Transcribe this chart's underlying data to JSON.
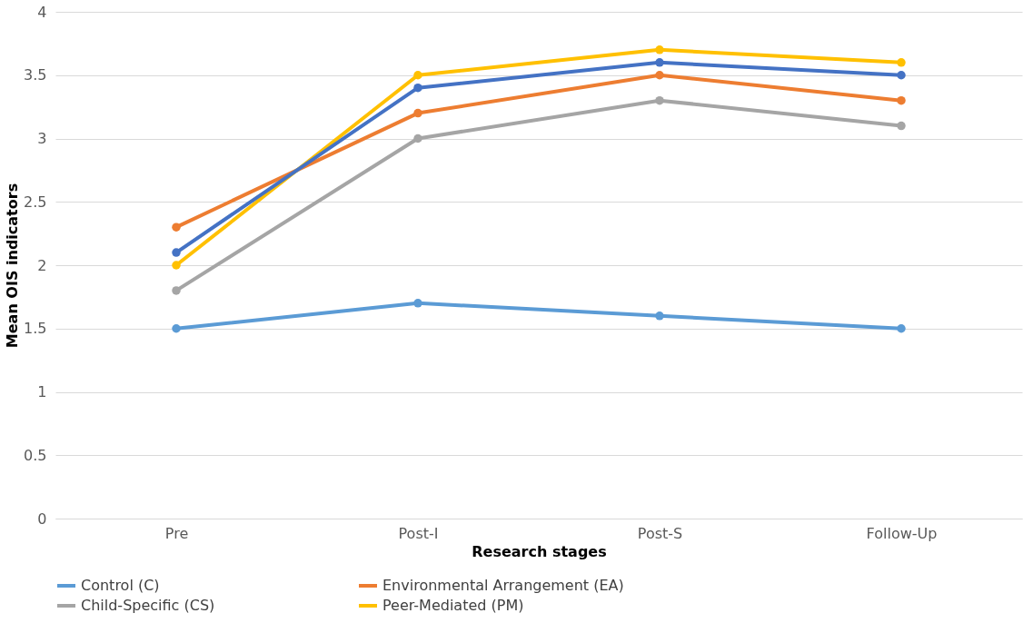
{
  "chart_data": {
    "type": "line",
    "xlabel": "Research stages",
    "ylabel": "Mean OIS indicators",
    "categories": [
      "Pre",
      "Post-I",
      "Post-S",
      "Follow-Up"
    ],
    "series": [
      {
        "name": "Control (C)",
        "color": "#5b9bd5",
        "values": [
          1.5,
          1.7,
          1.6,
          1.5
        ]
      },
      {
        "name": "Environmental Arrangement (EA)",
        "color": "#ed7d31",
        "values": [
          2.3,
          3.2,
          3.5,
          3.3
        ]
      },
      {
        "name": "Child-Specific (CS)",
        "color": "#a5a5a5",
        "values": [
          1.8,
          3.0,
          3.3,
          3.1
        ]
      },
      {
        "name": "Peer-Mediated (PM)",
        "color": "#ffc000",
        "values": [
          2.0,
          3.5,
          3.7,
          3.6
        ]
      },
      {
        "color": "#4472c4",
        "values": [
          2.1,
          3.4,
          3.6,
          3.5
        ]
      }
    ],
    "ylim": [
      0,
      4
    ],
    "yticks": [
      0,
      0.5,
      1,
      1.5,
      2,
      2.5,
      3,
      3.5,
      4
    ],
    "grid": "y",
    "legend": "bottom",
    "marker": "circle",
    "line_style": "solid"
  }
}
